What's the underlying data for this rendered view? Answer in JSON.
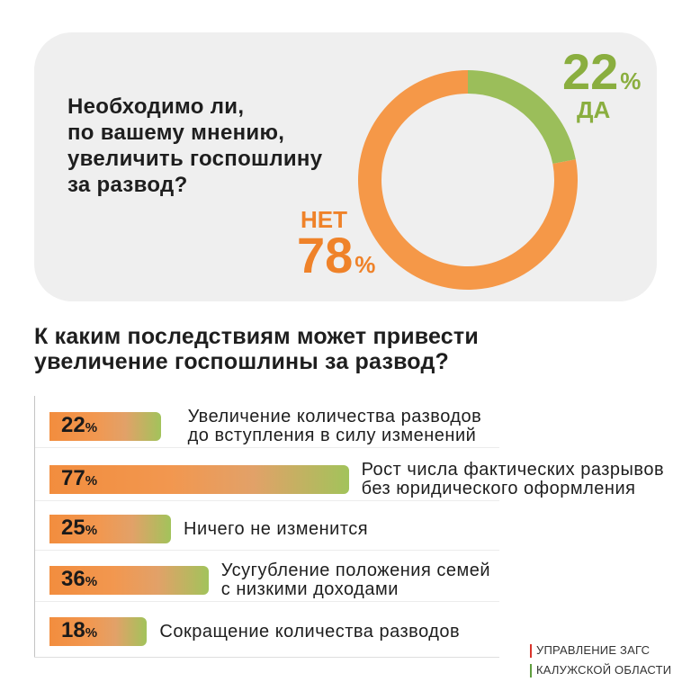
{
  "colors": {
    "yes": "#9bbe5a",
    "no": "#f59848",
    "yes_text": "#8aae3f",
    "no_text": "#ef8229",
    "bar_start": "#f28d3e",
    "bar_end": "#a2c35b",
    "card_bg": "#efefef",
    "text": "#1e1e1e",
    "logo_accent_1": "#d9342b",
    "logo_accent_2": "#5f9e3f"
  },
  "logo": {
    "line1": "УПРАВЛЕНИЕ ЗАГС",
    "line2": "КАЛУЖСКОЙ ОБЛАСТИ"
  },
  "chart_data": [
    {
      "type": "pie",
      "title_lines": [
        "Необходимо ли,",
        "по вашему мнению,",
        "увеличить госпошлину",
        "за развод?"
      ],
      "categories": [
        "ДА",
        "НЕТ"
      ],
      "values": [
        22,
        78
      ],
      "unit": "%"
    },
    {
      "type": "bar",
      "orientation": "horizontal",
      "title_lines": [
        "К каким последствиям может привести",
        "увеличение госпошлины за развод?"
      ],
      "categories": [
        [
          "Увеличение количества разводов",
          "до вступления в силу изменений"
        ],
        [
          "Рост числа фактических разрывов",
          "без юридического оформления"
        ],
        [
          "Ничего не изменится"
        ],
        [
          "Усугубление положения семей",
          "с низкими доходами"
        ],
        [
          "Сокращение количества разводов"
        ]
      ],
      "values": [
        22,
        77,
        25,
        36,
        18
      ],
      "unit": "%"
    }
  ]
}
